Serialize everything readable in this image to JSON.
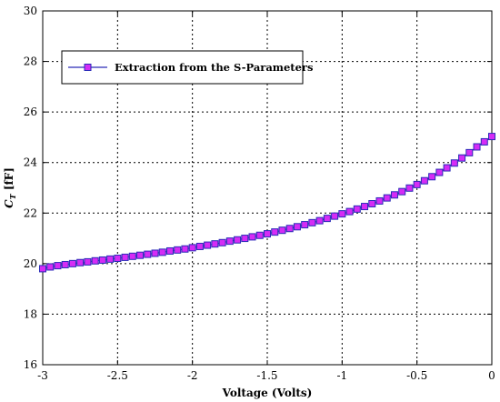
{
  "chart_data": {
    "type": "line",
    "xlabel": "Voltage (Volts)",
    "ylabel_main": "C",
    "ylabel_sub": "T",
    "ylabel_unit": " [fF]",
    "xlim": [
      -3,
      0
    ],
    "ylim": [
      16,
      30
    ],
    "x_ticks": [
      -3,
      -2.5,
      -2,
      -1.5,
      -1,
      -0.5,
      0
    ],
    "x_tick_labels": [
      "-3",
      "-2.5",
      "-2",
      "-1.5",
      "-1",
      "-0.5",
      "0"
    ],
    "y_ticks": [
      16,
      18,
      20,
      22,
      24,
      26,
      28,
      30
    ],
    "y_tick_labels": [
      "16",
      "18",
      "20",
      "22",
      "24",
      "26",
      "28",
      "30"
    ],
    "grid": true,
    "legend_position": "top-left",
    "colors": {
      "line": "#2a2ab8",
      "marker_fill": "#d52cf5",
      "marker_edge": "#2a2ab8"
    },
    "series": [
      {
        "name": "Extraction from the S-Parameters",
        "x": [
          -3.0,
          -2.95,
          -2.9,
          -2.85,
          -2.8,
          -2.75,
          -2.7,
          -2.65,
          -2.6,
          -2.55,
          -2.5,
          -2.45,
          -2.4,
          -2.35,
          -2.3,
          -2.25,
          -2.2,
          -2.15,
          -2.1,
          -2.05,
          -2.0,
          -1.95,
          -1.9,
          -1.85,
          -1.8,
          -1.75,
          -1.7,
          -1.65,
          -1.6,
          -1.55,
          -1.5,
          -1.45,
          -1.4,
          -1.35,
          -1.3,
          -1.25,
          -1.2,
          -1.15,
          -1.1,
          -1.05,
          -1.0,
          -0.95,
          -0.9,
          -0.85,
          -0.8,
          -0.75,
          -0.7,
          -0.65,
          -0.6,
          -0.55,
          -0.5,
          -0.45,
          -0.4,
          -0.35,
          -0.3,
          -0.25,
          -0.2,
          -0.15,
          -0.1,
          -0.05,
          0.0
        ],
        "y": [
          19.8,
          19.87,
          19.92,
          19.96,
          20.0,
          20.04,
          20.07,
          20.11,
          20.14,
          20.18,
          20.21,
          20.25,
          20.29,
          20.33,
          20.37,
          20.41,
          20.45,
          20.5,
          20.54,
          20.58,
          20.63,
          20.68,
          20.73,
          20.78,
          20.83,
          20.89,
          20.94,
          21.0,
          21.06,
          21.12,
          21.18,
          21.25,
          21.32,
          21.39,
          21.46,
          21.54,
          21.62,
          21.7,
          21.79,
          21.88,
          21.97,
          22.06,
          22.16,
          22.26,
          22.37,
          22.48,
          22.6,
          22.72,
          22.85,
          22.99,
          23.13,
          23.28,
          23.44,
          23.61,
          23.79,
          23.98,
          24.18,
          24.39,
          24.62,
          24.82,
          25.03
        ]
      }
    ]
  }
}
